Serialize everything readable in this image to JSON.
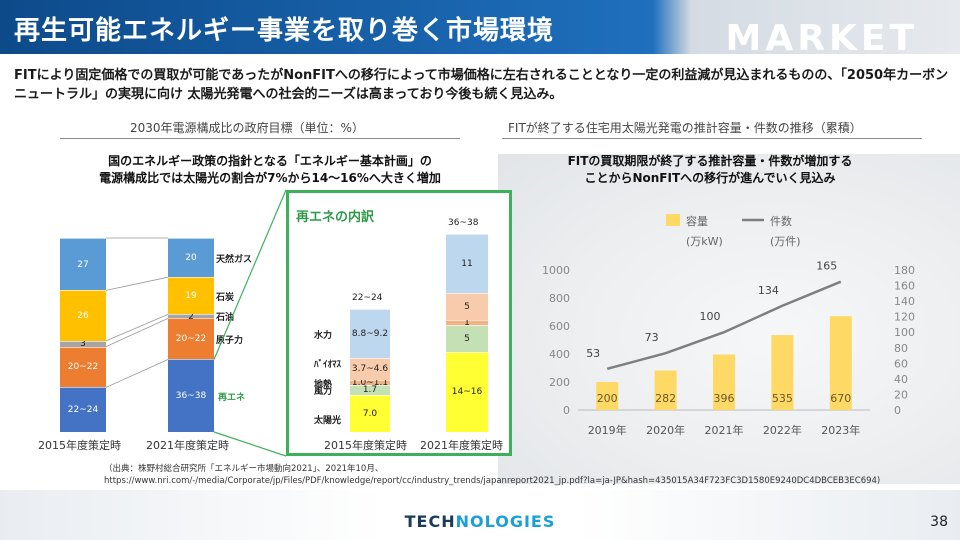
{
  "header": {
    "title": "再生可能エネルギー事業を取り巻く市場環境",
    "section_word": "MARKET"
  },
  "lead": "FITにより固定価格での買取が可能であったがNonFITへの移行によって市場価格に左右されることとなり一定の利益減が見込まれるものの、「2050年カーボンニュートラル」の実現に向け 太陽光発電への社会的ニーズは高まっており今後も続く見込み。",
  "left_section": {
    "heading": "2030年電源構成比の政府目標（単位：%）",
    "subtitle_line1": "国のエネルギー政策の指針となる「エネルギー基本計画」の",
    "subtitle_line2": "電源構成比では太陽光の割合が7%から14〜16%へ大きく増加",
    "renewables_box_title": "再エネの内訳"
  },
  "right_section": {
    "heading": "FITが終了する住宅用太陽光発電の推計容量・件数の推移（累積）",
    "subtitle_line1": "FITの買取期限が終了する推計容量・件数が増加する",
    "subtitle_line2": "ことからNonFITへの移行が進んでいく見込み"
  },
  "chart_data": [
    {
      "type": "bar",
      "stacked": true,
      "categories": [
        "2015年度策定時",
        "2021年度策定時"
      ],
      "series": [
        {
          "name": "再エネ",
          "labels": [
            "22~24",
            "36~38"
          ],
          "values": [
            23,
            37
          ],
          "color": "#4472c4"
        },
        {
          "name": "原子力",
          "labels": [
            "20~22",
            "20~22"
          ],
          "values": [
            21,
            21
          ],
          "color": "#ed7d31"
        },
        {
          "name": "石油",
          "labels": [
            "3",
            "2"
          ],
          "values": [
            3,
            2
          ],
          "color": "#a5a5a5"
        },
        {
          "name": "石炭",
          "labels": [
            "26",
            "19"
          ],
          "values": [
            26,
            19
          ],
          "color": "#ffc000"
        },
        {
          "name": "天然ガス",
          "labels": [
            "27",
            "20"
          ],
          "values": [
            27,
            20
          ],
          "color": "#5b9bd5"
        }
      ]
    },
    {
      "type": "bar",
      "stacked": true,
      "categories": [
        "2015年度策定時",
        "2021年度策定時"
      ],
      "totals": [
        "22~24",
        "36~38"
      ],
      "series": [
        {
          "name": "太陽光",
          "labels": [
            "7.0",
            "14~16"
          ],
          "values": [
            7.0,
            15
          ],
          "color": "#ffff33"
        },
        {
          "name": "風力",
          "labels": [
            "1.7",
            "5"
          ],
          "values": [
            1.7,
            5
          ],
          "color": "#c5e0b4"
        },
        {
          "name": "地熱",
          "labels": [
            "1.0~1.1",
            "1"
          ],
          "values": [
            1.05,
            1
          ],
          "color": "#f4b183"
        },
        {
          "name": "ﾊﾞｲｵﾏｽ",
          "labels": [
            "3.7~4.6",
            "5"
          ],
          "values": [
            4.15,
            5
          ],
          "color": "#f8cbad"
        },
        {
          "name": "水力",
          "labels": [
            "8.8~9.2",
            "11"
          ],
          "values": [
            9.0,
            11
          ],
          "color": "#bdd7ee"
        }
      ]
    },
    {
      "type": "bar",
      "categories": [
        "2019年",
        "2020年",
        "2021年",
        "2022年",
        "2023年"
      ],
      "series": [
        {
          "name": "容量",
          "unit": "(万kW)",
          "values": [
            200,
            282,
            396,
            535,
            670
          ],
          "axis": "left",
          "color": "#ffd966"
        },
        {
          "name": "件数",
          "unit": "(万件)",
          "values": [
            53,
            73,
            100,
            134,
            165
          ],
          "axis": "right",
          "type": "line",
          "color": "#7f7f7f"
        }
      ],
      "y_left": {
        "min": 0,
        "max": 1000,
        "ticks": [
          0,
          200,
          400,
          600,
          800,
          1000
        ]
      },
      "y_right": {
        "min": 0,
        "max": 180,
        "ticks": [
          0,
          20,
          40,
          60,
          80,
          100,
          120,
          140,
          160,
          180
        ]
      },
      "legend": "top"
    }
  ],
  "source": {
    "line1": "（出典：株野村総合研究所「エネルギー市場動向2021」、2021年10月、",
    "line2": "https://www.nri.com/-/media/Corporate/jp/Files/PDF/knowledge/report/cc/industry_trends/japanreport2021_jp.pdf?la=ja-JP&hash=435015A34F723FC3D1580E9240DC4DBCEB3EC694)"
  },
  "footer": {
    "brand_prefix": "TECH",
    "brand_suffix": "NOLOGIES",
    "page_number": "38"
  }
}
